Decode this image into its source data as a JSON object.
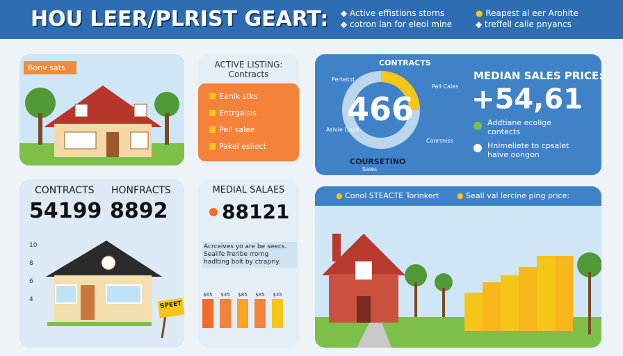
{
  "header": {
    "title": "HOU LEER/PLRIST GEART:",
    "legend": [
      [
        "Active effistions storns",
        "cotron lan for eleol mine"
      ],
      [
        "Reapest al eer Arohite",
        "treffell calie pnyancs"
      ]
    ]
  },
  "panel1": {
    "tag": "Bonv sats"
  },
  "panel2": {
    "title": "ACTIVE LISTING:",
    "subtitle": "Contracts",
    "items": [
      "Eanlk stks",
      "Entrgalsis",
      "Peil salee",
      "Pakel esliect"
    ]
  },
  "panel3": {
    "donut_title": "CONTRACTS",
    "donut_value": "466",
    "labels": [
      "Pertelcd",
      "Pell Cales",
      "Aslvie Leuls",
      "Conrsniss"
    ],
    "bottom": "COURSETINO",
    "bottom_sub": "Sales",
    "price_title": "MEDIAN SALES PRICE:",
    "price": "+54,61",
    "bullets": [
      "Addtiane ecolige contects",
      "Hnimeliete to cpsalet haive oongon"
    ]
  },
  "panel4": {
    "labels": [
      "CONTRACTS",
      "HONFRACTS"
    ],
    "values": [
      "54199",
      "8892"
    ],
    "axis": [
      "10",
      "8",
      "6",
      "4"
    ],
    "sign": "SPEET"
  },
  "panel5": {
    "title": "MEDIAL SALAES",
    "value": "88121",
    "note": "Acrceives yo are be seecs. Sealife freribe rrorng hadlting bolt by ctrapriy.",
    "bar_labels": [
      "$65",
      "$35",
      "$85",
      "$85",
      "$35"
    ]
  },
  "panel6": {
    "legend": [
      "Conol STEACTE Torinkert",
      "Seall val lercine ping price:"
    ]
  }
}
